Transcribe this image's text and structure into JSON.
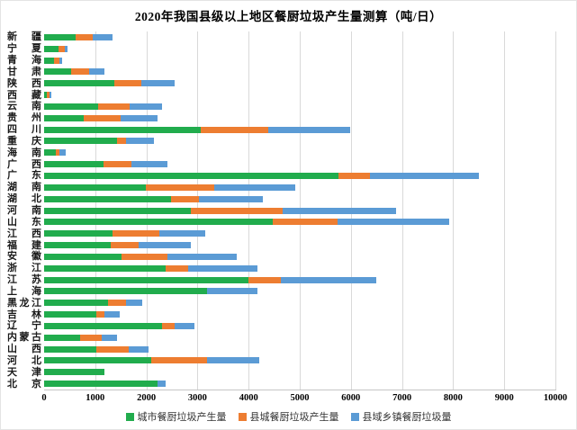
{
  "title": "2020年我国县级以上地区餐厨垃圾产生量测算（吨/日）",
  "colors": {
    "series_urban": "#21ac4d",
    "series_county": "#ed7d31",
    "series_township": "#5b9bd5",
    "gridline": "#d9d9d9",
    "axis_line": "#c6c6c6",
    "text": "#000000"
  },
  "chart_data": {
    "type": "bar",
    "orientation": "horizontal",
    "stacked": true,
    "grid": true,
    "legend_position": "bottom",
    "title": "2020年我国县级以上地区餐厨垃圾产生量测算（吨/日）",
    "xlabel": "",
    "ylabel": "",
    "x_axis": {
      "min": 0,
      "max": 10000,
      "tick_interval": 1000,
      "ticks": [
        "0",
        "1000",
        "2000",
        "3000",
        "4000",
        "5000",
        "6000",
        "7000",
        "8000",
        "9000",
        "10000"
      ]
    },
    "categories": [
      "新疆",
      "宁夏",
      "青海",
      "甘肃",
      "陕西",
      "西藏",
      "云南",
      "贵州",
      "四川",
      "重庆",
      "海南",
      "广西",
      "广东",
      "湖南",
      "湖北",
      "河南",
      "山东",
      "江西",
      "福建",
      "安徽",
      "浙江",
      "江苏",
      "上海",
      "黑龙江",
      "吉林",
      "辽宁",
      "内蒙古",
      "山西",
      "河北",
      "天津",
      "北京"
    ],
    "series": [
      {
        "name": "城市餐厨垃圾产生量",
        "color": "#21ac4d",
        "values": [
          620,
          290,
          190,
          530,
          1370,
          55,
          1050,
          780,
          3060,
          1420,
          235,
          1160,
          5750,
          1990,
          2490,
          2870,
          4470,
          1340,
          1305,
          1520,
          2385,
          4000,
          3185,
          1255,
          1025,
          2300,
          700,
          1025,
          2090,
          1175,
          2220
        ]
      },
      {
        "name": "县城餐厨垃圾产生量",
        "color": "#ed7d31",
        "values": [
          330,
          110,
          110,
          355,
          530,
          45,
          620,
          710,
          1320,
          190,
          70,
          550,
          620,
          1330,
          530,
          1800,
          1265,
          910,
          545,
          900,
          435,
          630,
          0,
          345,
          160,
          245,
          435,
          625,
          1090,
          0,
          0
        ]
      },
      {
        "name": "县域乡镇餐厨垃圾量",
        "color": "#5b9bd5",
        "values": [
          390,
          65,
          60,
          300,
          650,
          50,
          640,
          720,
          1600,
          540,
          115,
          710,
          2140,
          1595,
          1250,
          2210,
          2180,
          900,
          1020,
          1350,
          1350,
          1870,
          995,
          320,
          290,
          400,
          290,
          400,
          1020,
          0,
          165
        ]
      }
    ]
  }
}
